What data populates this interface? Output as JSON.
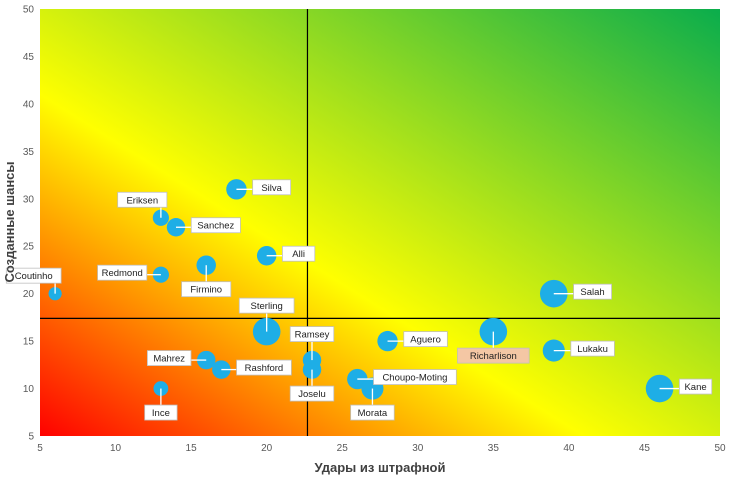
{
  "chart_data": {
    "type": "scatter",
    "title": "",
    "xlabel": "Удары из штрафной",
    "ylabel": "Созданные шансы",
    "xlim": [
      5,
      50
    ],
    "ylim": [
      5,
      50
    ],
    "x_ticks": [
      "5",
      "10",
      "15",
      "20",
      "25",
      "30",
      "35",
      "40",
      "45",
      "50"
    ],
    "y_ticks": [
      "5",
      "10",
      "15",
      "20",
      "25",
      "30",
      "35",
      "40",
      "45",
      "50"
    ],
    "reference_lines": {
      "x": 22.7,
      "y": 17.4
    },
    "bubble_color": "#1eaee6",
    "highlight_label_color": "#f4c7a4",
    "background_gradient": [
      "#ff0000",
      "#ffff00",
      "#0aad4c"
    ],
    "points": [
      {
        "name": "Coutinho",
        "x": 6,
        "y": 20,
        "size": 1,
        "label_pos": "tl"
      },
      {
        "name": "Redmond",
        "x": 13,
        "y": 22,
        "size": 2,
        "label_pos": "l"
      },
      {
        "name": "Eriksen",
        "x": 13,
        "y": 28,
        "size": 2,
        "label_pos": "tl"
      },
      {
        "name": "Sanchez",
        "x": 14,
        "y": 27,
        "size": 3,
        "label_pos": "r"
      },
      {
        "name": "Silva",
        "x": 18,
        "y": 31,
        "size": 4,
        "label_pos": "r"
      },
      {
        "name": "Alli",
        "x": 20,
        "y": 24,
        "size": 3.5,
        "label_pos": "r"
      },
      {
        "name": "Firmino",
        "x": 16,
        "y": 23,
        "size": 3.5,
        "label_pos": "b"
      },
      {
        "name": "Sterling",
        "x": 20,
        "y": 16,
        "size": 9,
        "label_pos": "t"
      },
      {
        "name": "Mahrez",
        "x": 16,
        "y": 13,
        "size": 3,
        "label_pos": "l"
      },
      {
        "name": "Rashford",
        "x": 17,
        "y": 12,
        "size": 3,
        "label_pos": "r"
      },
      {
        "name": "Ince",
        "x": 13,
        "y": 10,
        "size": 1.5,
        "label_pos": "b"
      },
      {
        "name": "Ramsey",
        "x": 23,
        "y": 13,
        "size": 3,
        "label_pos": "t"
      },
      {
        "name": "Joselu",
        "x": 23,
        "y": 12,
        "size": 3,
        "label_pos": "b"
      },
      {
        "name": "Choupo-Moting",
        "x": 26,
        "y": 11,
        "size": 4,
        "label_pos": "r"
      },
      {
        "name": "Morata",
        "x": 27,
        "y": 10,
        "size": 5,
        "label_pos": "b"
      },
      {
        "name": "Aguero",
        "x": 28,
        "y": 15,
        "size": 4,
        "label_pos": "r"
      },
      {
        "name": "Richarlison",
        "x": 35,
        "y": 16,
        "size": 9,
        "label_pos": "b",
        "highlight": true
      },
      {
        "name": "Salah",
        "x": 39,
        "y": 20,
        "size": 9,
        "label_pos": "r"
      },
      {
        "name": "Lukaku",
        "x": 39,
        "y": 14,
        "size": 5,
        "label_pos": "r"
      },
      {
        "name": "Kane",
        "x": 46,
        "y": 10,
        "size": 9,
        "label_pos": "r"
      }
    ]
  }
}
